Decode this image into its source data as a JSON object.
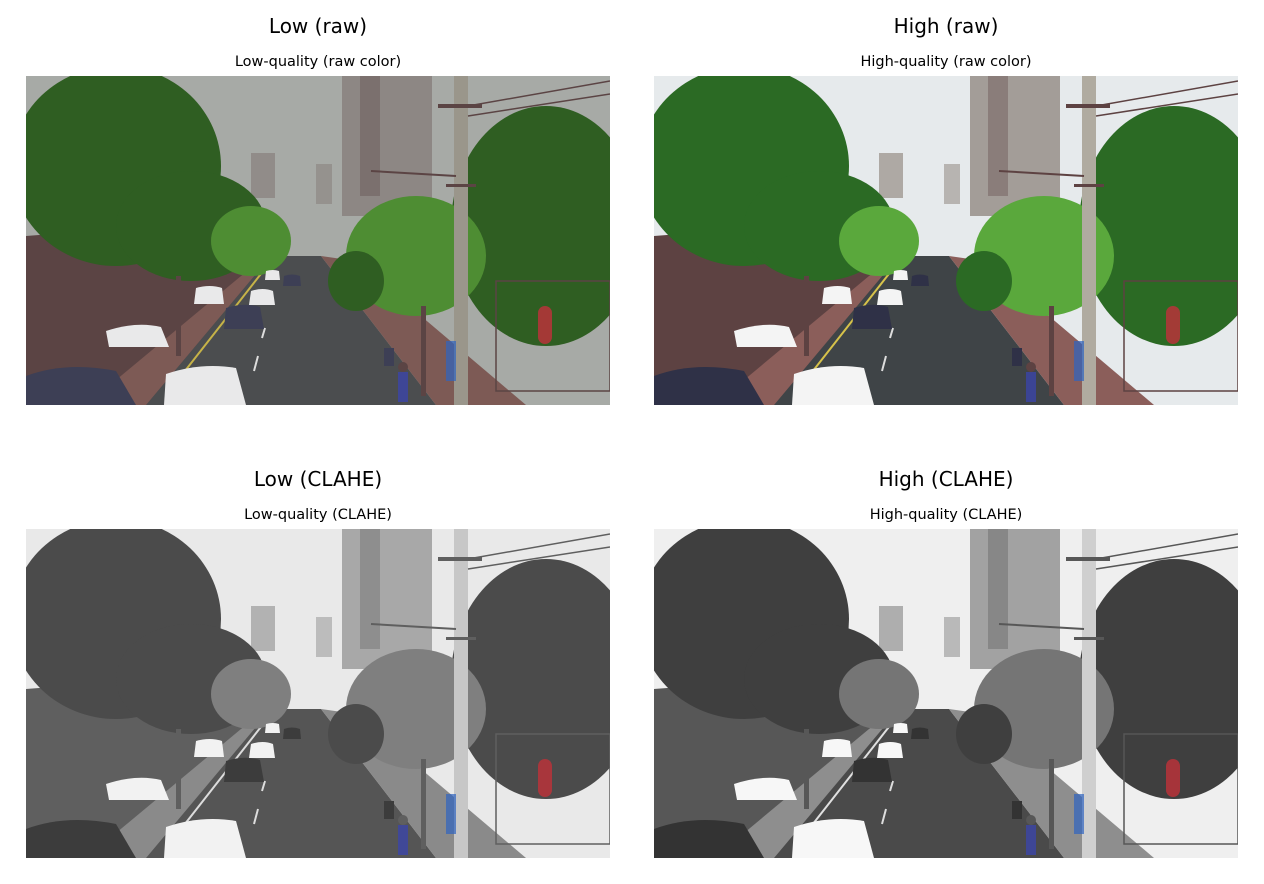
{
  "panels": [
    {
      "title": "Low (raw)",
      "subtitle": "Low-quality (raw color)"
    },
    {
      "title": "High (raw)",
      "subtitle": "High-quality (raw color)"
    },
    {
      "title": "Low (CLAHE)",
      "subtitle": "Low-quality (CLAHE)"
    },
    {
      "title": "High (CLAHE)",
      "subtitle": "High-quality (CLAHE)"
    }
  ],
  "palettes": {
    "low_raw": {
      "sky": "#a7aaa6",
      "tree": "#2f5e22",
      "tree2": "#4e8d33",
      "road": "#4b4d4f",
      "walk": "#7d5a55",
      "bldg": "#8d8784",
      "wall": "#5b4444",
      "pole": "#9a968b",
      "car": "#e9e9ea",
      "car2": "#3d3f55",
      "line": "#c6b348"
    },
    "high_raw": {
      "sky": "#e6eaec",
      "tree": "#2b6a24",
      "tree2": "#5aa83c",
      "road": "#3f4447",
      "walk": "#8b5e5a",
      "bldg": "#a39d98",
      "wall": "#5d4242",
      "pole": "#b0aba0",
      "car": "#f4f4f4",
      "car2": "#2f3147",
      "line": "#d6c24a"
    },
    "low_clahe": {
      "sky": "#e9e9e9",
      "tree": "#4b4b4b",
      "tree2": "#7f7f7f",
      "road": "#555555",
      "walk": "#8a8a8a",
      "bldg": "#a8a8a8",
      "wall": "#5f5f5f",
      "pole": "#c7c7c7",
      "car": "#f2f2f2",
      "car2": "#3c3c3c",
      "line": "#dcdcdc"
    },
    "high_clahe": {
      "sky": "#efefef",
      "tree": "#3f3f3f",
      "tree2": "#757575",
      "road": "#4a4a4a",
      "walk": "#8e8e8e",
      "bldg": "#a2a2a2",
      "wall": "#575757",
      "pole": "#cfcfcf",
      "car": "#f7f7f7",
      "car2": "#333333",
      "line": "#e0e0e0"
    }
  }
}
